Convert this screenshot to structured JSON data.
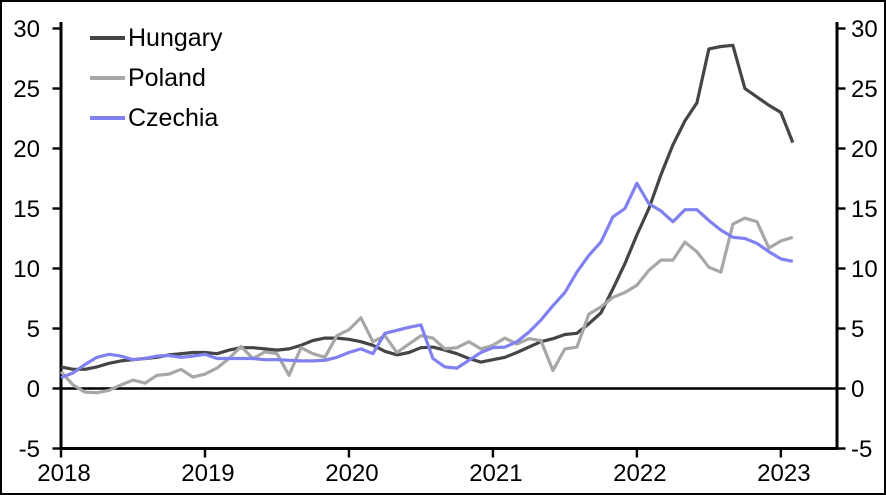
{
  "chart_data": {
    "type": "line",
    "title": "",
    "x_start": "2018-01",
    "x_frequency": "monthly",
    "xlim": [
      2018,
      2023.39
    ],
    "ylim": [
      -5,
      30
    ],
    "y_ticks": [
      30,
      25,
      20,
      15,
      10,
      5,
      0,
      -5
    ],
    "x_ticks": [
      2018,
      2019,
      2020,
      2021,
      2022,
      2023
    ],
    "grid": false,
    "zero_line": true,
    "axis_mirrored": true,
    "legend_position": "top-left",
    "series": [
      {
        "name": "Hungary",
        "color": "#454547",
        "values": [
          1.8,
          1.6,
          1.6,
          1.8,
          2.1,
          2.3,
          2.4,
          2.5,
          2.6,
          2.8,
          2.9,
          3.0,
          3.0,
          2.9,
          3.2,
          3.4,
          3.4,
          3.3,
          3.2,
          3.3,
          3.6,
          4.0,
          4.2,
          4.2,
          4.1,
          3.9,
          3.6,
          3.1,
          2.8,
          3.0,
          3.4,
          3.45,
          3.2,
          2.9,
          2.5,
          2.2,
          2.4,
          2.6,
          3.0,
          3.45,
          3.9,
          4.15,
          4.5,
          4.6,
          5.4,
          6.3,
          8.3,
          10.4,
          12.8,
          15.0,
          17.8,
          20.3,
          22.3,
          23.8,
          28.3,
          28.5,
          28.6,
          25.0,
          24.3,
          23.6,
          23.0,
          20.5
        ]
      },
      {
        "name": "Poland",
        "color": "#a7a7a7",
        "values": [
          1.4,
          0.3,
          -0.3,
          -0.35,
          -0.15,
          0.3,
          0.7,
          0.45,
          1.1,
          1.2,
          1.6,
          0.95,
          1.2,
          1.7,
          2.5,
          3.5,
          2.5,
          3.05,
          2.9,
          1.1,
          3.4,
          2.9,
          2.6,
          4.4,
          4.9,
          5.9,
          3.9,
          4.4,
          3.0,
          3.7,
          4.4,
          4.2,
          3.3,
          3.4,
          3.9,
          3.3,
          3.6,
          4.2,
          3.7,
          4.15,
          4.0,
          1.5,
          3.3,
          3.45,
          6.2,
          6.8,
          7.6,
          8.0,
          8.6,
          9.85,
          10.7,
          10.7,
          12.2,
          11.4,
          10.1,
          9.7,
          13.7,
          14.2,
          13.9,
          11.7,
          12.3,
          12.6
        ]
      },
      {
        "name": "Czechia",
        "color": "#8080f0",
        "values": [
          0.9,
          1.3,
          2.0,
          2.6,
          2.85,
          2.7,
          2.4,
          2.5,
          2.7,
          2.75,
          2.6,
          2.7,
          2.85,
          2.5,
          2.5,
          2.5,
          2.5,
          2.4,
          2.4,
          2.35,
          2.3,
          2.3,
          2.35,
          2.6,
          3.0,
          3.3,
          2.9,
          4.6,
          4.85,
          5.1,
          5.3,
          2.5,
          1.8,
          1.7,
          2.35,
          3.0,
          3.4,
          3.45,
          3.9,
          4.7,
          5.7,
          6.9,
          8.0,
          9.7,
          11.1,
          12.2,
          14.3,
          15.0,
          17.1,
          15.4,
          14.8,
          13.9,
          14.9,
          14.9,
          14.0,
          13.2,
          12.6,
          12.5,
          12.1,
          11.4,
          10.8,
          10.6
        ]
      }
    ]
  }
}
